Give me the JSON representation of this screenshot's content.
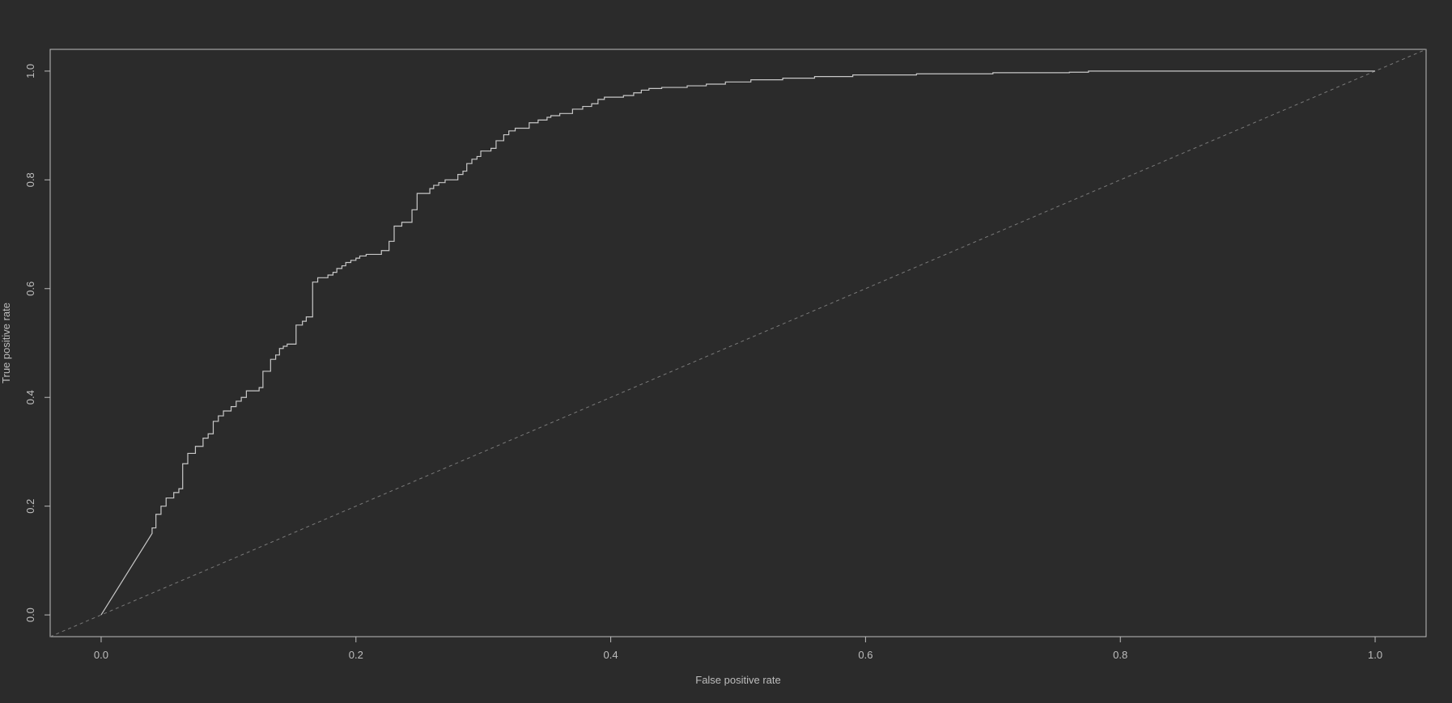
{
  "colors": {
    "background": "#2b2b2b",
    "foreground": "#bdbdbd",
    "curve": "#c8c8c8",
    "diagonal": "#7a7a7a"
  },
  "chart_data": {
    "type": "line",
    "title": "",
    "xlabel": "False positive rate",
    "ylabel": "True positive rate",
    "xlim": [
      -0.04,
      1.04
    ],
    "ylim": [
      -0.04,
      1.04
    ],
    "grid": false,
    "legend": null,
    "x_ticks": [
      0.0,
      0.2,
      0.4,
      0.6,
      0.8,
      1.0
    ],
    "x_tick_labels": [
      "0.0",
      "0.2",
      "0.4",
      "0.6",
      "0.8",
      "1.0"
    ],
    "y_ticks": [
      0.0,
      0.2,
      0.4,
      0.6,
      0.8,
      1.0
    ],
    "y_tick_labels": [
      "0.0",
      "0.2",
      "0.4",
      "0.6",
      "0.8",
      "1.0"
    ],
    "series": [
      {
        "style": "step",
        "points": [
          [
            0.0,
            0.0
          ],
          [
            0.04,
            0.15
          ],
          [
            0.04,
            0.16
          ],
          [
            0.043,
            0.16
          ],
          [
            0.043,
            0.185
          ],
          [
            0.047,
            0.185
          ],
          [
            0.047,
            0.2
          ],
          [
            0.051,
            0.2
          ],
          [
            0.051,
            0.215
          ],
          [
            0.057,
            0.215
          ],
          [
            0.057,
            0.225
          ],
          [
            0.061,
            0.225
          ],
          [
            0.061,
            0.232
          ],
          [
            0.064,
            0.232
          ],
          [
            0.064,
            0.278
          ],
          [
            0.068,
            0.278
          ],
          [
            0.068,
            0.297
          ],
          [
            0.074,
            0.297
          ],
          [
            0.074,
            0.31
          ],
          [
            0.08,
            0.31
          ],
          [
            0.08,
            0.325
          ],
          [
            0.084,
            0.325
          ],
          [
            0.084,
            0.333
          ],
          [
            0.088,
            0.333
          ],
          [
            0.088,
            0.356
          ],
          [
            0.092,
            0.356
          ],
          [
            0.092,
            0.366
          ],
          [
            0.096,
            0.366
          ],
          [
            0.096,
            0.375
          ],
          [
            0.102,
            0.375
          ],
          [
            0.102,
            0.383
          ],
          [
            0.106,
            0.383
          ],
          [
            0.106,
            0.393
          ],
          [
            0.11,
            0.393
          ],
          [
            0.11,
            0.4
          ],
          [
            0.114,
            0.4
          ],
          [
            0.114,
            0.412
          ],
          [
            0.124,
            0.412
          ],
          [
            0.124,
            0.418
          ],
          [
            0.127,
            0.418
          ],
          [
            0.127,
            0.448
          ],
          [
            0.133,
            0.448
          ],
          [
            0.133,
            0.47
          ],
          [
            0.137,
            0.47
          ],
          [
            0.137,
            0.478
          ],
          [
            0.14,
            0.478
          ],
          [
            0.14,
            0.49
          ],
          [
            0.143,
            0.49
          ],
          [
            0.143,
            0.494
          ],
          [
            0.146,
            0.494
          ],
          [
            0.146,
            0.498
          ],
          [
            0.153,
            0.498
          ],
          [
            0.153,
            0.533
          ],
          [
            0.158,
            0.533
          ],
          [
            0.158,
            0.54
          ],
          [
            0.161,
            0.54
          ],
          [
            0.161,
            0.548
          ],
          [
            0.166,
            0.548
          ],
          [
            0.166,
            0.612
          ],
          [
            0.17,
            0.612
          ],
          [
            0.17,
            0.62
          ],
          [
            0.178,
            0.62
          ],
          [
            0.178,
            0.625
          ],
          [
            0.182,
            0.625
          ],
          [
            0.182,
            0.63
          ],
          [
            0.185,
            0.63
          ],
          [
            0.185,
            0.637
          ],
          [
            0.189,
            0.637
          ],
          [
            0.189,
            0.642
          ],
          [
            0.192,
            0.642
          ],
          [
            0.192,
            0.648
          ],
          [
            0.196,
            0.648
          ],
          [
            0.196,
            0.652
          ],
          [
            0.2,
            0.652
          ],
          [
            0.2,
            0.656
          ],
          [
            0.203,
            0.656
          ],
          [
            0.203,
            0.66
          ],
          [
            0.208,
            0.66
          ],
          [
            0.208,
            0.663
          ],
          [
            0.22,
            0.663
          ],
          [
            0.22,
            0.67
          ],
          [
            0.226,
            0.67
          ],
          [
            0.226,
            0.687
          ],
          [
            0.23,
            0.687
          ],
          [
            0.23,
            0.715
          ],
          [
            0.236,
            0.715
          ],
          [
            0.236,
            0.722
          ],
          [
            0.244,
            0.722
          ],
          [
            0.244,
            0.745
          ],
          [
            0.248,
            0.745
          ],
          [
            0.248,
            0.775
          ],
          [
            0.258,
            0.775
          ],
          [
            0.258,
            0.784
          ],
          [
            0.261,
            0.784
          ],
          [
            0.261,
            0.79
          ],
          [
            0.265,
            0.79
          ],
          [
            0.265,
            0.795
          ],
          [
            0.27,
            0.795
          ],
          [
            0.27,
            0.8
          ],
          [
            0.28,
            0.8
          ],
          [
            0.28,
            0.81
          ],
          [
            0.284,
            0.81
          ],
          [
            0.284,
            0.816
          ],
          [
            0.287,
            0.816
          ],
          [
            0.287,
            0.83
          ],
          [
            0.291,
            0.83
          ],
          [
            0.291,
            0.838
          ],
          [
            0.295,
            0.838
          ],
          [
            0.295,
            0.843
          ],
          [
            0.298,
            0.843
          ],
          [
            0.298,
            0.853
          ],
          [
            0.306,
            0.853
          ],
          [
            0.306,
            0.858
          ],
          [
            0.31,
            0.858
          ],
          [
            0.31,
            0.872
          ],
          [
            0.316,
            0.872
          ],
          [
            0.316,
            0.883
          ],
          [
            0.32,
            0.883
          ],
          [
            0.32,
            0.89
          ],
          [
            0.325,
            0.89
          ],
          [
            0.325,
            0.895
          ],
          [
            0.336,
            0.895
          ],
          [
            0.336,
            0.905
          ],
          [
            0.343,
            0.905
          ],
          [
            0.343,
            0.91
          ],
          [
            0.35,
            0.91
          ],
          [
            0.35,
            0.915
          ],
          [
            0.353,
            0.915
          ],
          [
            0.353,
            0.918
          ],
          [
            0.36,
            0.918
          ],
          [
            0.36,
            0.922
          ],
          [
            0.37,
            0.922
          ],
          [
            0.37,
            0.93
          ],
          [
            0.378,
            0.93
          ],
          [
            0.378,
            0.935
          ],
          [
            0.385,
            0.935
          ],
          [
            0.385,
            0.94
          ],
          [
            0.39,
            0.94
          ],
          [
            0.39,
            0.948
          ],
          [
            0.395,
            0.948
          ],
          [
            0.395,
            0.952
          ],
          [
            0.41,
            0.952
          ],
          [
            0.41,
            0.955
          ],
          [
            0.418,
            0.955
          ],
          [
            0.418,
            0.96
          ],
          [
            0.424,
            0.96
          ],
          [
            0.424,
            0.965
          ],
          [
            0.43,
            0.965
          ],
          [
            0.43,
            0.968
          ],
          [
            0.44,
            0.968
          ],
          [
            0.44,
            0.97
          ],
          [
            0.46,
            0.97
          ],
          [
            0.46,
            0.973
          ],
          [
            0.475,
            0.973
          ],
          [
            0.475,
            0.976
          ],
          [
            0.49,
            0.976
          ],
          [
            0.49,
            0.98
          ],
          [
            0.51,
            0.98
          ],
          [
            0.51,
            0.984
          ],
          [
            0.535,
            0.984
          ],
          [
            0.535,
            0.987
          ],
          [
            0.56,
            0.987
          ],
          [
            0.56,
            0.99
          ],
          [
            0.59,
            0.99
          ],
          [
            0.59,
            0.993
          ],
          [
            0.64,
            0.993
          ],
          [
            0.64,
            0.995
          ],
          [
            0.7,
            0.995
          ],
          [
            0.7,
            0.997
          ],
          [
            0.76,
            0.997
          ],
          [
            0.76,
            0.998
          ],
          [
            0.775,
            0.998
          ],
          [
            0.775,
            1.0
          ],
          [
            1.0,
            1.0
          ]
        ]
      },
      {
        "style": "dashed",
        "points": [
          [
            -0.04,
            -0.04
          ],
          [
            1.04,
            1.04
          ]
        ]
      }
    ]
  }
}
